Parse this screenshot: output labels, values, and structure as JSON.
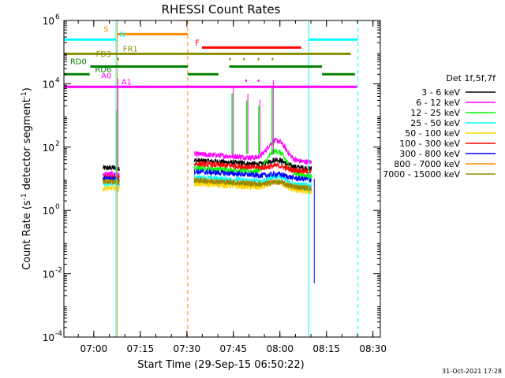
{
  "chart_data": {
    "type": "line",
    "title": "RHESSI Count Rates",
    "xlabel": "Start Time (29-Sep-15 06:50:22)",
    "ylabel": "Count Rate (s⁻¹ detector segment⁻¹)",
    "ylabel_main": "Count Rate (s",
    "ylabel_sup1": "-1",
    "ylabel_mid": " detector segment",
    "ylabel_sup2": "-1",
    "ylabel_end": ")",
    "y_scale": "log",
    "ylim": [
      0.0001,
      1000000
    ],
    "xlim_minutes": [
      0,
      102
    ],
    "x_ticks": [
      {
        "label": "07:00",
        "minutes": 9.63
      },
      {
        "label": "07:15",
        "minutes": 24.63
      },
      {
        "label": "07:30",
        "minutes": 39.63
      },
      {
        "label": "07:45",
        "minutes": 54.63
      },
      {
        "label": "08:00",
        "minutes": 69.63
      },
      {
        "label": "08:15",
        "minutes": 84.63
      },
      {
        "label": "08:30",
        "minutes": 99.63
      }
    ],
    "y_ticks": [
      {
        "exp": -4,
        "base": "10",
        "sup": "-4"
      },
      {
        "exp": -2,
        "base": "10",
        "sup": "-2"
      },
      {
        "exp": 0,
        "base": "10",
        "sup": "0"
      },
      {
        "exp": 2,
        "base": "10",
        "sup": "2"
      },
      {
        "exp": 4,
        "base": "10",
        "sup": "4"
      },
      {
        "exp": 6,
        "base": "10",
        "sup": "6"
      }
    ],
    "grid": false,
    "legend_title": "Det 1f,5f,7f",
    "legend_position": "right",
    "series": [
      {
        "name": "3 - 6 keV",
        "color": "#000000",
        "seg1": 22,
        "seg2": 38,
        "flare_peak": 40
      },
      {
        "name": "6 - 12 keV",
        "color": "#ff00ff",
        "seg1": 14,
        "seg2": 60,
        "flare_peak": 160
      },
      {
        "name": "12 - 25 keV",
        "color": "#00ff00",
        "seg1": 9,
        "seg2": 22,
        "flare_peak": 75
      },
      {
        "name": "25 - 50 keV",
        "color": "#00ffff",
        "seg1": 7,
        "seg2": 11,
        "flare_peak": 12
      },
      {
        "name": "50 - 100 keV",
        "color": "#ffd700",
        "seg1": 5,
        "seg2": 7,
        "flare_peak": 8
      },
      {
        "name": "100 - 300 keV",
        "color": "#ff0000",
        "seg1": 11,
        "seg2": 30,
        "flare_peak": 26
      },
      {
        "name": "300 - 800 keV",
        "color": "#0000ff",
        "seg1": 10,
        "seg2": 17,
        "flare_peak": 14
      },
      {
        "name": "800 - 7000 keV",
        "color": "#ff8c00",
        "seg1": 8,
        "seg2": 9,
        "flare_peak": 8
      },
      {
        "name": "7000 - 15000 keV",
        "color": "#8b8b00",
        "seg1": 8,
        "seg2": 9,
        "flare_peak": 8
      }
    ],
    "segments": [
      {
        "start": 12.6,
        "end": 17.9
      },
      {
        "start": 42.0,
        "end": 79.8
      }
    ],
    "spikes": [
      {
        "minutes": 54.2,
        "value": 5000,
        "series": "12 - 25 keV",
        "series_b": "6 - 12 keV"
      },
      {
        "minutes": 58.9,
        "value": 3000,
        "series": "12 - 25 keV",
        "series_b": "6 - 12 keV"
      },
      {
        "minutes": 62.8,
        "value": 2000,
        "series": "12 - 25 keV",
        "series_b": "6 - 12 keV"
      },
      {
        "minutes": 67.1,
        "value": 8000,
        "series": "12 - 25 keV",
        "series_b": "6 - 12 keV"
      }
    ],
    "vertical_lines": [
      {
        "minutes": 16.8,
        "color": "#00ffff",
        "dash": false
      },
      {
        "minutes": 17.2,
        "color": "#ff8c00",
        "dash": false
      },
      {
        "minutes": 39.9,
        "color": "#ff8c00",
        "dash": true
      },
      {
        "minutes": 78.9,
        "color": "#00ffff",
        "dash": false
      },
      {
        "minutes": 94.8,
        "color": "#00ffff",
        "dash": true
      }
    ],
    "flag_bars": [
      {
        "label": "S",
        "color": "#ff8c00",
        "value": 370000,
        "spans": [
          [
            17.2,
            39.9
          ]
        ],
        "label_minutes": 14.4,
        "anchor": "end"
      },
      {
        "label": "N",
        "color": "#00ffff",
        "value": 250000,
        "spans": [
          [
            0,
            16.8
          ],
          [
            78.9,
            94.8
          ]
        ],
        "label_minutes": 17.9,
        "anchor": "start"
      },
      {
        "label": "F",
        "color": "#ff0000",
        "value": 140000,
        "spans": [
          [
            44.5,
            76.5
          ]
        ],
        "label_minutes": 42.3,
        "anchor": "start"
      },
      {
        "label": "FR1",
        "color": "#8b8b00",
        "value": 88000,
        "spans": [
          [
            0,
            92.5
          ]
        ],
        "label_minutes": 19.0,
        "anchor": "start"
      },
      {
        "label": "FD3",
        "color": "#8b8b00",
        "value": 60000,
        "spans": [
          [
            17.3,
            17.8
          ]
        ],
        "label_minutes": 10.3,
        "anchor": "start",
        "dotted": [
          [
            53.3,
            53.8
          ],
          [
            57.8,
            58.3
          ],
          [
            62.5,
            63.0
          ],
          [
            67.0,
            67.5
          ]
        ]
      },
      {
        "label": "RD0",
        "color": "#008000",
        "value": 35000,
        "spans": [
          [
            8.5,
            39.9
          ],
          [
            53.3,
            83.2
          ]
        ],
        "label_minutes": 2.0,
        "anchor": "start"
      },
      {
        "label": "RD6",
        "color": "#008000",
        "value": 20000,
        "spans": [
          [
            0,
            8.3
          ],
          [
            39.9,
            49.8
          ],
          [
            83.2,
            93.8
          ]
        ],
        "label_minutes": 10.0,
        "anchor": "start"
      },
      {
        "label": "A0",
        "color": "#ff00ff",
        "value": 12500,
        "spans": [],
        "label_minutes": 12.0,
        "anchor": "start",
        "dotted": [
          [
            58.5,
            59.0
          ],
          [
            62.5,
            63.0
          ]
        ]
      },
      {
        "label": "A1",
        "color": "#ff00ff",
        "value": 8000,
        "spans": [
          [
            0,
            94.5
          ]
        ],
        "label_minutes": 18.5,
        "anchor": "start"
      }
    ]
  },
  "footer": {
    "timestamp": "31-Oct-2021 17:28"
  }
}
